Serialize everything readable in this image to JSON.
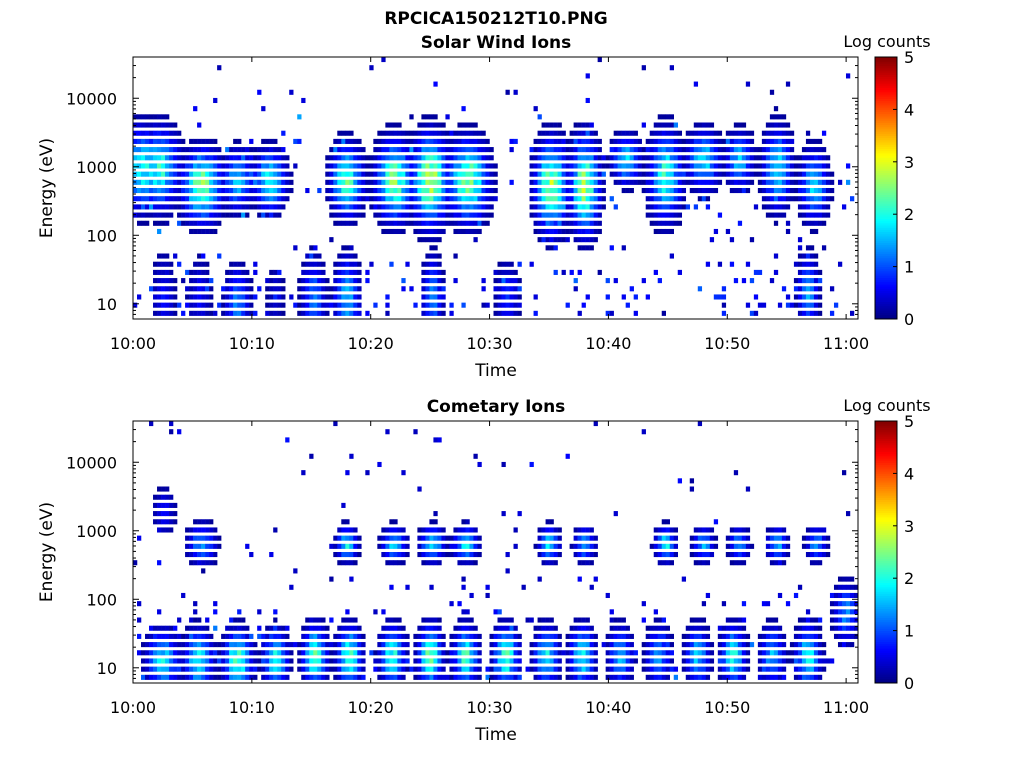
{
  "figure_title": "RPCICA150212T10.PNG",
  "chart_data": [
    {
      "type": "heatmap",
      "title": "Solar Wind Ions",
      "xlabel": "Time",
      "ylabel": "Energy (eV)",
      "x_ticks": [
        "10:00",
        "10:10",
        "10:20",
        "10:30",
        "10:40",
        "10:50",
        "11:00"
      ],
      "x_range_minutes_after_10": [
        0,
        61
      ],
      "y_ticks": [
        {
          "value": 10,
          "label": "10"
        },
        {
          "value": 100,
          "label": "100"
        },
        {
          "value": 1000,
          "label": "1000"
        },
        {
          "value": 10000,
          "label": "10000"
        }
      ],
      "y_scale": "log",
      "y_range": [
        6,
        40000
      ],
      "colorbar": {
        "label": "Log counts",
        "range": [
          0,
          5
        ],
        "ticks": [
          "0",
          "1",
          "2",
          "3",
          "4",
          "5"
        ],
        "colormap": "jet"
      },
      "seed": 12,
      "features": [
        {
          "t": 0.8,
          "e": 900,
          "dt": 1.2,
          "de": 2.2,
          "v": 2.0
        },
        {
          "t": 2.2,
          "e": 900,
          "dt": 1.0,
          "de": 2.2,
          "v": 2.1
        },
        {
          "t": 2.6,
          "e": 12,
          "dt": 0.6,
          "de": 2.5,
          "v": 0.6
        },
        {
          "t": 5.8,
          "e": 500,
          "dt": 1.0,
          "de": 2.0,
          "v": 2.6
        },
        {
          "t": 5.6,
          "e": 12,
          "dt": 0.6,
          "de": 2.2,
          "v": 0.6
        },
        {
          "t": 8.8,
          "e": 10,
          "dt": 0.6,
          "de": 2.0,
          "v": 1.3
        },
        {
          "t": 8.8,
          "e": 600,
          "dt": 0.8,
          "de": 1.8,
          "v": 1.6
        },
        {
          "t": 11.5,
          "e": 600,
          "dt": 0.8,
          "de": 1.8,
          "v": 2.0
        },
        {
          "t": 12.0,
          "e": 12,
          "dt": 0.5,
          "de": 2.0,
          "v": 0.4
        },
        {
          "t": 15.2,
          "e": 12,
          "dt": 0.6,
          "de": 2.2,
          "v": 1.2
        },
        {
          "t": 18.0,
          "e": 600,
          "dt": 0.8,
          "de": 2.0,
          "v": 2.3
        },
        {
          "t": 18.0,
          "e": 12,
          "dt": 0.6,
          "de": 2.2,
          "v": 1.6
        },
        {
          "t": 22.0,
          "e": 600,
          "dt": 0.9,
          "de": 2.2,
          "v": 2.5
        },
        {
          "t": 25.0,
          "e": 600,
          "dt": 0.9,
          "de": 2.4,
          "v": 2.9
        },
        {
          "t": 25.2,
          "e": 12,
          "dt": 0.5,
          "de": 2.2,
          "v": 1.3
        },
        {
          "t": 28.2,
          "e": 600,
          "dt": 1.0,
          "de": 2.2,
          "v": 2.6
        },
        {
          "t": 31.5,
          "e": 12,
          "dt": 0.6,
          "de": 2.0,
          "v": 0.8
        },
        {
          "t": 35.2,
          "e": 500,
          "dt": 0.8,
          "de": 2.4,
          "v": 2.7
        },
        {
          "t": 38.0,
          "e": 500,
          "dt": 0.7,
          "de": 2.5,
          "v": 2.8
        },
        {
          "t": 41.5,
          "e": 1200,
          "dt": 0.7,
          "de": 1.6,
          "v": 1.8
        },
        {
          "t": 44.8,
          "e": 700,
          "dt": 0.8,
          "de": 2.4,
          "v": 2.1
        },
        {
          "t": 48.0,
          "e": 1200,
          "dt": 0.8,
          "de": 1.8,
          "v": 1.8
        },
        {
          "t": 51.0,
          "e": 1200,
          "dt": 0.7,
          "de": 1.7,
          "v": 1.6
        },
        {
          "t": 54.2,
          "e": 900,
          "dt": 0.7,
          "de": 2.2,
          "v": 1.9
        },
        {
          "t": 57.3,
          "e": 500,
          "dt": 0.7,
          "de": 2.0,
          "v": 1.7
        },
        {
          "t": 56.8,
          "e": 14,
          "dt": 0.5,
          "de": 2.0,
          "v": 1.5
        }
      ],
      "bands": [
        {
          "e": 12,
          "de": 2.3,
          "p": 0.12,
          "v": 0.8
        },
        {
          "e": 700,
          "de": 2.5,
          "p": 0.06,
          "v": 1.0
        }
      ],
      "noise": 0.022
    },
    {
      "type": "heatmap",
      "title": "Cometary Ions",
      "xlabel": "Time",
      "ylabel": "Energy (eV)",
      "x_ticks": [
        "10:00",
        "10:10",
        "10:20",
        "10:30",
        "10:40",
        "10:50",
        "11:00"
      ],
      "x_range_minutes_after_10": [
        0,
        61
      ],
      "y_ticks": [
        {
          "value": 10,
          "label": "10"
        },
        {
          "value": 100,
          "label": "100"
        },
        {
          "value": 1000,
          "label": "1000"
        },
        {
          "value": 10000,
          "label": "10000"
        }
      ],
      "y_scale": "log",
      "y_range": [
        6,
        40000
      ],
      "colorbar": {
        "label": "Log counts",
        "range": [
          0,
          5
        ],
        "ticks": [
          "0",
          "1",
          "2",
          "3",
          "4",
          "5"
        ],
        "colormap": "jet"
      },
      "seed": 33,
      "features": [
        {
          "t": 2.5,
          "e": 12,
          "dt": 0.8,
          "de": 1.8,
          "v": 1.8
        },
        {
          "t": 5.5,
          "e": 12,
          "dt": 0.7,
          "de": 1.8,
          "v": 2.0
        },
        {
          "t": 8.8,
          "e": 12,
          "dt": 0.7,
          "de": 1.8,
          "v": 2.4
        },
        {
          "t": 12.0,
          "e": 12,
          "dt": 0.6,
          "de": 1.8,
          "v": 2.0
        },
        {
          "t": 15.3,
          "e": 14,
          "dt": 0.6,
          "de": 1.8,
          "v": 2.4
        },
        {
          "t": 18.2,
          "e": 14,
          "dt": 0.6,
          "de": 1.8,
          "v": 2.3
        },
        {
          "t": 21.8,
          "e": 14,
          "dt": 0.6,
          "de": 1.8,
          "v": 2.1
        },
        {
          "t": 25.0,
          "e": 14,
          "dt": 0.6,
          "de": 1.8,
          "v": 2.4
        },
        {
          "t": 28.0,
          "e": 14,
          "dt": 0.6,
          "de": 1.8,
          "v": 2.2
        },
        {
          "t": 31.4,
          "e": 14,
          "dt": 0.6,
          "de": 1.8,
          "v": 2.3
        },
        {
          "t": 34.8,
          "e": 14,
          "dt": 0.6,
          "de": 1.8,
          "v": 1.9
        },
        {
          "t": 37.8,
          "e": 14,
          "dt": 0.6,
          "de": 1.8,
          "v": 2.1
        },
        {
          "t": 41.0,
          "e": 14,
          "dt": 0.6,
          "de": 1.8,
          "v": 1.5
        },
        {
          "t": 44.2,
          "e": 14,
          "dt": 0.6,
          "de": 1.8,
          "v": 1.4
        },
        {
          "t": 47.5,
          "e": 14,
          "dt": 0.6,
          "de": 1.8,
          "v": 1.6
        },
        {
          "t": 50.5,
          "e": 14,
          "dt": 0.6,
          "de": 1.8,
          "v": 2.0
        },
        {
          "t": 53.8,
          "e": 14,
          "dt": 0.6,
          "de": 1.8,
          "v": 1.5
        },
        {
          "t": 56.8,
          "e": 14,
          "dt": 0.6,
          "de": 1.8,
          "v": 2.0
        },
        {
          "t": 2.6,
          "e": 1800,
          "dt": 0.6,
          "de": 1.6,
          "v": 0.6
        },
        {
          "t": 5.8,
          "e": 600,
          "dt": 0.7,
          "de": 1.5,
          "v": 1.4
        },
        {
          "t": 18.0,
          "e": 600,
          "dt": 0.5,
          "de": 1.4,
          "v": 1.9
        },
        {
          "t": 22.0,
          "e": 600,
          "dt": 0.6,
          "de": 1.4,
          "v": 1.7
        },
        {
          "t": 25.2,
          "e": 600,
          "dt": 0.6,
          "de": 1.4,
          "v": 1.9
        },
        {
          "t": 28.0,
          "e": 600,
          "dt": 0.6,
          "de": 1.4,
          "v": 1.8
        },
        {
          "t": 35.0,
          "e": 600,
          "dt": 0.5,
          "de": 1.4,
          "v": 1.8
        },
        {
          "t": 38.0,
          "e": 600,
          "dt": 0.5,
          "de": 1.4,
          "v": 1.5
        },
        {
          "t": 44.8,
          "e": 600,
          "dt": 0.5,
          "de": 1.4,
          "v": 1.9
        },
        {
          "t": 48.0,
          "e": 600,
          "dt": 0.5,
          "de": 1.4,
          "v": 1.5
        },
        {
          "t": 51.0,
          "e": 600,
          "dt": 0.5,
          "de": 1.4,
          "v": 1.4
        },
        {
          "t": 54.2,
          "e": 600,
          "dt": 0.5,
          "de": 1.4,
          "v": 1.5
        },
        {
          "t": 57.5,
          "e": 600,
          "dt": 0.5,
          "de": 1.4,
          "v": 1.4
        },
        {
          "t": 60.0,
          "e": 60,
          "dt": 0.6,
          "de": 1.8,
          "v": 1.3
        }
      ],
      "bands": [
        {
          "e": 14,
          "de": 1.9,
          "p": 0.12,
          "v": 0.9
        },
        {
          "e": 60,
          "de": 2.2,
          "p": 0.06,
          "v": 0.6
        }
      ],
      "noise": 0.014
    }
  ]
}
